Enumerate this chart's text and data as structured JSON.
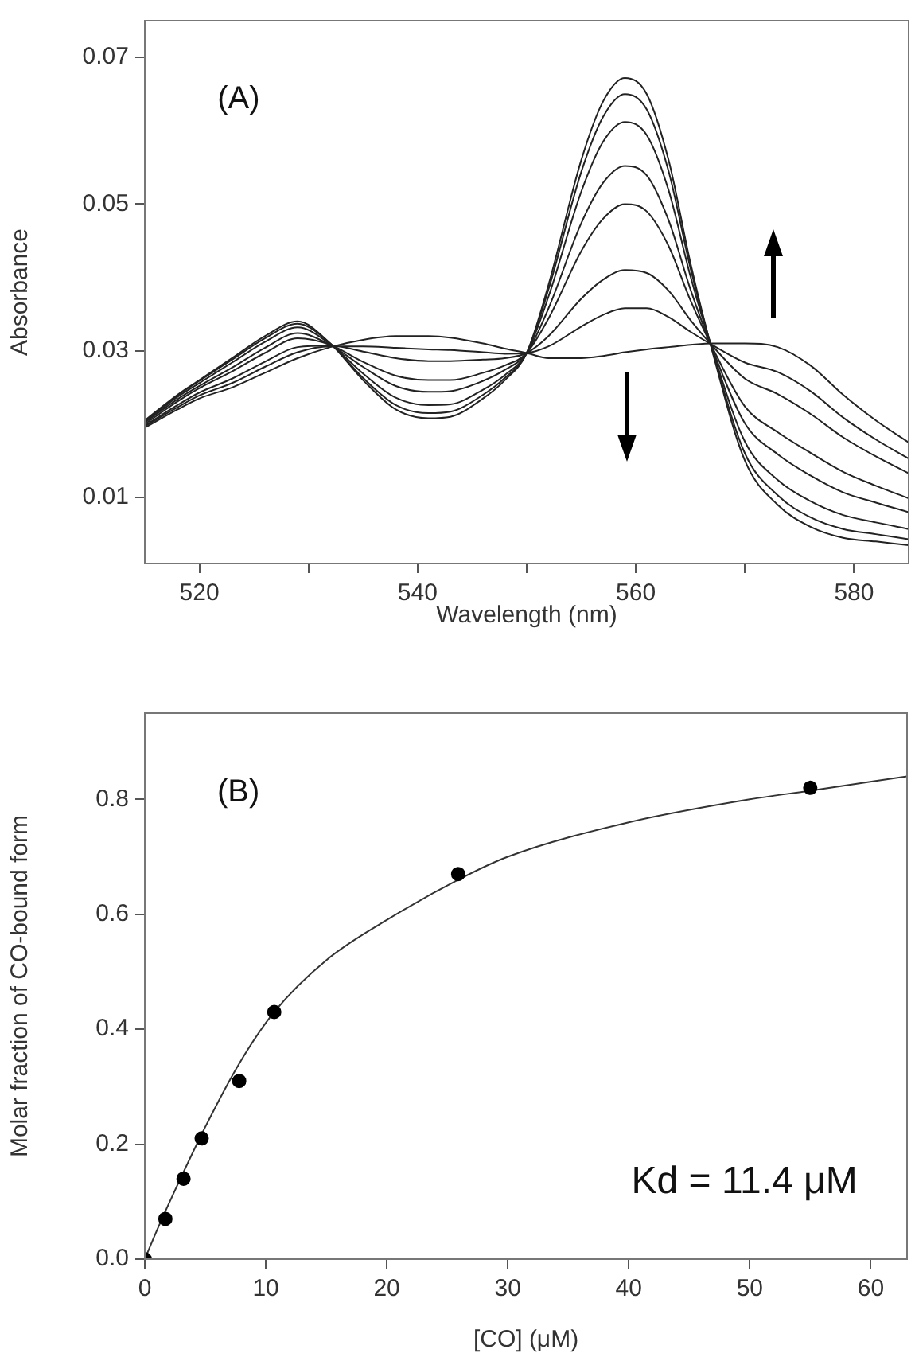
{
  "chart_data": [
    {
      "type": "line",
      "xlabel": "Wavelength (nm)",
      "ylabel": "Absorbance",
      "marker": "none",
      "grid": false,
      "xlim": [
        515,
        585
      ],
      "xticks": [
        520,
        {
          "value": 530,
          "label": null
        },
        540,
        {
          "value": 550,
          "label": null
        },
        560,
        {
          "value": 570,
          "label": null
        },
        580
      ],
      "ylim": [
        0.001,
        0.075
      ],
      "yticks": [
        0.01,
        0.03,
        0.05,
        0.07
      ],
      "annotations": [
        "(A)"
      ],
      "x": [
        515,
        518,
        520,
        523,
        526,
        529,
        532,
        535,
        538,
        541,
        543,
        546,
        548,
        550,
        552,
        555,
        557,
        559,
        561,
        563,
        565,
        567,
        570,
        573,
        576,
        579,
        582,
        585
      ],
      "series": [
        {
          "color": "#222222",
          "values": [
            0.0195,
            0.022,
            0.0235,
            0.025,
            0.027,
            0.029,
            0.0305,
            0.0315,
            0.032,
            0.032,
            0.0318,
            0.031,
            0.0303,
            0.0297,
            0.029,
            0.029,
            0.0293,
            0.0298,
            0.0302,
            0.0305,
            0.0308,
            0.031,
            0.031,
            0.0305,
            0.028,
            0.024,
            0.0205,
            0.0175
          ]
        },
        {
          "color": "#222222",
          "values": [
            0.0197,
            0.0223,
            0.0239,
            0.0256,
            0.0278,
            0.0298,
            0.0306,
            0.0306,
            0.0304,
            0.0302,
            0.0301,
            0.0298,
            0.0296,
            0.0297,
            0.0306,
            0.0333,
            0.0349,
            0.0358,
            0.0358,
            0.0346,
            0.0326,
            0.0308,
            0.0284,
            0.0271,
            0.0245,
            0.0209,
            0.0179,
            0.0153
          ]
        },
        {
          "color": "#222222",
          "values": [
            0.0198,
            0.0226,
            0.0243,
            0.0262,
            0.0285,
            0.0305,
            0.0307,
            0.0299,
            0.029,
            0.0286,
            0.0286,
            0.0288,
            0.029,
            0.0297,
            0.032,
            0.0371,
            0.0397,
            0.041,
            0.0406,
            0.0382,
            0.0342,
            0.0307,
            0.0262,
            0.0241,
            0.0214,
            0.0182,
            0.0156,
            0.0133
          ]
        },
        {
          "color": "#222222",
          "values": [
            0.02,
            0.0231,
            0.0249,
            0.0272,
            0.0297,
            0.0317,
            0.0308,
            0.0285,
            0.0266,
            0.026,
            0.026,
            0.027,
            0.028,
            0.0297,
            0.0344,
            0.0436,
            0.048,
            0.05,
            0.049,
            0.0443,
            0.0369,
            0.0305,
            0.0224,
            0.0189,
            0.0161,
            0.0135,
            0.0116,
            0.0099
          ]
        },
        {
          "color": "#222222",
          "values": [
            0.0202,
            0.0234,
            0.0252,
            0.0277,
            0.0304,
            0.0324,
            0.0308,
            0.0278,
            0.0252,
            0.0244,
            0.0245,
            0.0259,
            0.0274,
            0.0297,
            0.0358,
            0.0474,
            0.0529,
            0.0552,
            0.0539,
            0.0478,
            0.0384,
            0.0303,
            0.0201,
            0.0159,
            0.013,
            0.0107,
            0.0093,
            0.008
          ]
        },
        {
          "color": "#222222",
          "values": [
            0.0203,
            0.0237,
            0.0256,
            0.0284,
            0.0312,
            0.0332,
            0.0309,
            0.0269,
            0.0236,
            0.0226,
            0.0227,
            0.0247,
            0.0267,
            0.0297,
            0.0374,
            0.0517,
            0.0585,
            0.0612,
            0.0594,
            0.0519,
            0.0402,
            0.0302,
            0.0176,
            0.0124,
            0.0095,
            0.0076,
            0.0066,
            0.0057
          ]
        },
        {
          "color": "#222222",
          "values": [
            0.0204,
            0.0239,
            0.0259,
            0.0288,
            0.0317,
            0.0337,
            0.031,
            0.0263,
            0.0226,
            0.0215,
            0.0217,
            0.024,
            0.0263,
            0.0297,
            0.0384,
            0.0544,
            0.0619,
            0.065,
            0.0629,
            0.0545,
            0.0413,
            0.0301,
            0.016,
            0.0103,
            0.0073,
            0.0057,
            0.005,
            0.0043
          ]
        },
        {
          "color": "#222222",
          "values": [
            0.0205,
            0.024,
            0.026,
            0.029,
            0.032,
            0.034,
            0.031,
            0.026,
            0.022,
            0.0208,
            0.021,
            0.0235,
            0.026,
            0.0297,
            0.039,
            0.056,
            0.064,
            0.0672,
            0.065,
            0.056,
            0.042,
            0.03,
            0.015,
            0.009,
            0.006,
            0.0045,
            0.004,
            0.0035
          ]
        }
      ]
    },
    {
      "type": "scatter",
      "xlabel": "[CO] (μM)",
      "ylabel": "Molar fraction of CO-bound form",
      "grid": false,
      "xlim": [
        0,
        63
      ],
      "xticks": [
        0,
        10,
        20,
        30,
        40,
        50,
        60
      ],
      "ylim": [
        0,
        0.95
      ],
      "yticks": [
        {
          "value": 0,
          "label": "0.0"
        },
        0.2,
        0.4,
        0.6,
        0.8
      ],
      "annotations": [
        "(B)",
        "Kd = 11.4 μM"
      ],
      "series": [
        {
          "type": "scatter",
          "marker": "circle",
          "color": "#000000",
          "x": [
            0,
            1.7,
            3.2,
            4.7,
            7.8,
            10.7,
            25.9,
            55
          ],
          "values": [
            0,
            0.07,
            0.14,
            0.21,
            0.31,
            0.43,
            0.67,
            0.82
          ]
        },
        {
          "type": "line",
          "marker": "none",
          "color": "#333333",
          "x": [
            0,
            1,
            2.5,
            5,
            7.8,
            10.7,
            15,
            20,
            25.9,
            30,
            40,
            50,
            55,
            63
          ],
          "values": [
            0,
            0.05,
            0.12,
            0.23,
            0.34,
            0.43,
            0.52,
            0.59,
            0.66,
            0.7,
            0.76,
            0.8,
            0.815,
            0.84
          ]
        }
      ]
    }
  ]
}
